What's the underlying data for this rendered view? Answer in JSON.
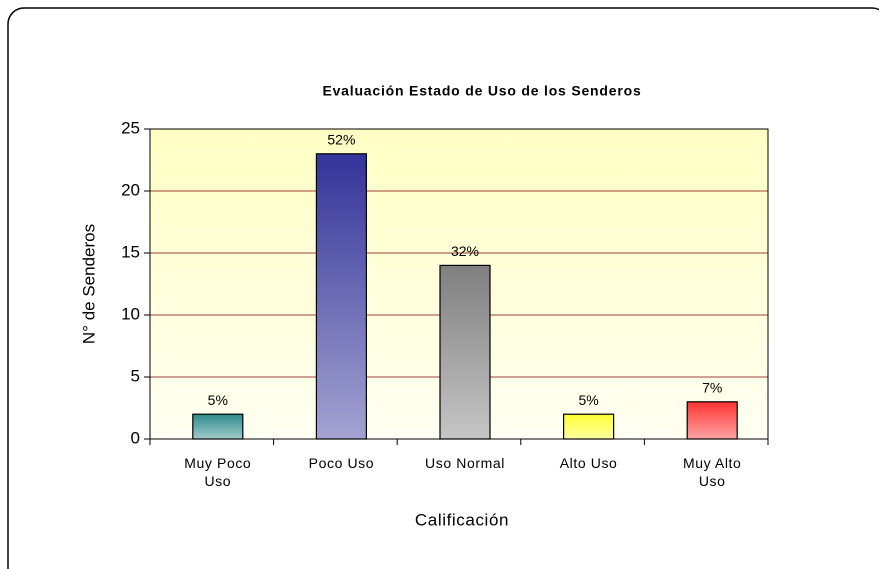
{
  "chart_data": {
    "type": "bar",
    "title": "Evaluación Estado de Uso de los Senderos",
    "x_label": "Calificación",
    "y_label": "N° de Senderos",
    "categories": [
      "Muy Poco\nUso",
      "Poco Uso",
      "Uso Normal",
      "Alto Uso",
      "Muy Alto\nUso"
    ],
    "values": [
      2,
      23,
      14,
      2,
      3
    ],
    "data_labels": [
      "5%",
      "52%",
      "32%",
      "5%",
      "7%"
    ],
    "colors": [
      "#2e8b8b",
      "#333399",
      "#7f7f7f",
      "#ffff33",
      "#ff3333"
    ],
    "ylim": [
      0,
      25
    ],
    "yticks": [
      0,
      5,
      10,
      15,
      20,
      25
    ],
    "grid": true
  }
}
